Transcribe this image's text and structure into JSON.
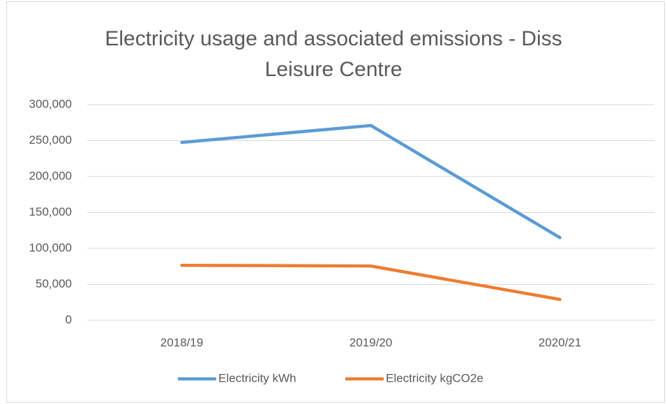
{
  "chart_data": {
    "type": "line",
    "title": "Electricity usage and associated emissions - Diss Leisure Centre",
    "categories": [
      "2018/19",
      "2019/20",
      "2020/21"
    ],
    "series": [
      {
        "name": "Electricity kWh",
        "color": "#5b9bd5",
        "values": [
          247500,
          271000,
          115000
        ]
      },
      {
        "name": "Electricity kgCO2e",
        "color": "#ed7d31",
        "values": [
          76500,
          75500,
          29000
        ]
      }
    ],
    "ylim": [
      0,
      300000
    ],
    "yticks": [
      0,
      {
        "value": 50000,
        "label": "50,000"
      },
      {
        "value": 100000,
        "label": "100,000"
      },
      {
        "value": 150000,
        "label": "150,000"
      },
      {
        "value": 200000,
        "label": "200,000"
      },
      {
        "value": 250000,
        "label": "250,000"
      },
      {
        "value": 300000,
        "label": "300,000"
      }
    ],
    "grid": true,
    "legend": "bottom"
  }
}
